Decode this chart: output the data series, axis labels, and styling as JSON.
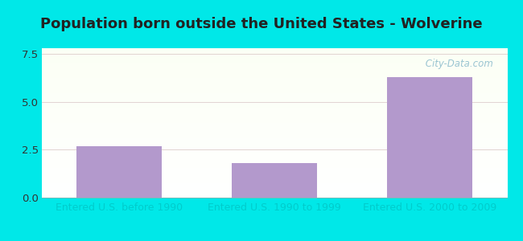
{
  "title": "Population born outside the United States - Wolverine",
  "categories": [
    "Entered U.S. before 1990",
    "Entered U.S. 1990 to 1999",
    "Entered U.S. 2000 to 2009"
  ],
  "values": [
    2.7,
    1.8,
    6.3
  ],
  "bar_color": "#b399cc",
  "ylim": [
    0,
    7.8
  ],
  "yticks": [
    0,
    2.5,
    5,
    7.5
  ],
  "outer_bg_color": "#00e8e8",
  "title_color": "#222222",
  "xlabel_color": "#00cccc",
  "title_fontsize": 13,
  "tick_label_fontsize": 9.5,
  "xlabel_fontsize": 9,
  "watermark_text": " City-Data.com",
  "watermark_color": "#90bece",
  "grid_color": "#ddcccc",
  "ytick_color": "#333333"
}
